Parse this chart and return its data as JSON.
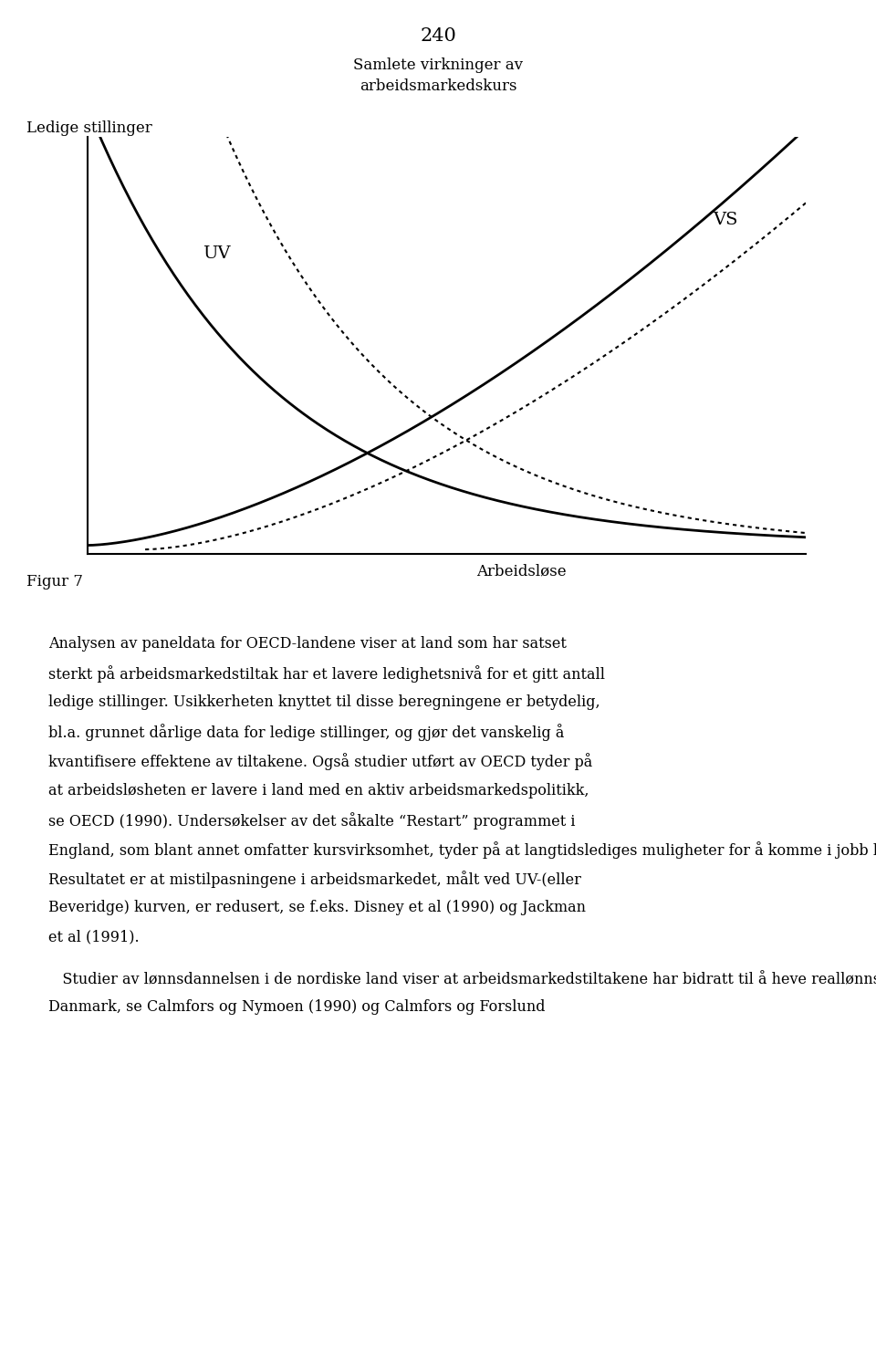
{
  "page_number": "240",
  "chart_title_line1": "Samlete virkninger av",
  "chart_title_line2": "arbeidsmarkedskurs",
  "y_axis_label": "Ledige stillinger",
  "x_axis_label": "Arbeidsløse",
  "curve_uv_label": "UV",
  "curve_vs_label": "VS",
  "figure_label": "Figur 7",
  "para1_lines": [
    "Analysen av paneldata for OECD-landene viser at land som har satset",
    "sterkt på arbeidsmarkedstiltak har et lavere ledighetsnivå for et gitt antall",
    "ledige stillinger. Usikkerheten knyttet til disse beregningene er betydelig,",
    "bl.a. grunnet dårlige data for ledige stillinger, og gjør det vanskelig å",
    "kvantifisere effektene av tiltakene. Også studier utført av OECD tyder på",
    "at arbeidsløsheten er lavere i land med en aktiv arbeidsmarkedspolitikk,",
    "se OECD (1990). Undersøkelser av det såkalte “Restart” programmet i",
    "England, som blant annet omfatter kursvirksomhet, tyder på at langtidslediges muligheter for å komme i jobb har økt som følge av programmet.",
    "Resultatet er at mistilpasningene i arbeidsmarkedet, målt ved UV-(eller",
    "Beveridge) kurven, er redusert, se f.eks. Disney et al (1990) og Jackman",
    "et al (1991)."
  ],
  "para2_lines": [
    "   Studier av lønnsdannelsen i de nordiske land viser at arbeidsmarkedstiltakene har bidratt til å heve reallønnsnivaet i Sverige, Finland og",
    "Danmark, se Calmfors og Nymoen (1990) og Calmfors og Forslund"
  ],
  "background_color": "#ffffff",
  "text_color": "#000000",
  "font_family": "serif"
}
